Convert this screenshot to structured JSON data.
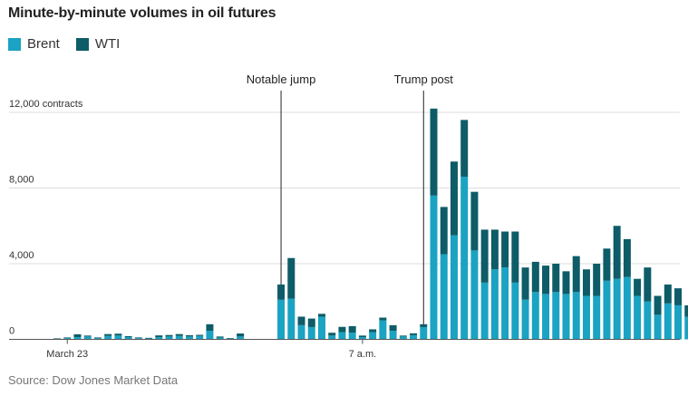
{
  "title": "Minute-by-minute volumes in oil futures",
  "source": "Source: Dow Jones Market Data",
  "colors": {
    "brent": "#1aa3c2",
    "wti": "#0d5c68",
    "grid": "#dcdcdc",
    "axis": "#555555"
  },
  "legend": [
    {
      "name": "Brent",
      "color": "#1aa3c2"
    },
    {
      "name": "WTI",
      "color": "#0d5c68"
    }
  ],
  "chart_data": {
    "type": "bar",
    "stacked": true,
    "title": "Minute-by-minute volumes in oil futures",
    "ylabel": "contracts",
    "ylim": [
      0,
      12000
    ],
    "yticks": [
      {
        "value": 0,
        "label": "0"
      },
      {
        "value": 4000,
        "label": "4,000"
      },
      {
        "value": 8000,
        "label": "8,000"
      },
      {
        "value": 12000,
        "label": "12,000 contracts"
      }
    ],
    "xtick_labels": [
      {
        "index": 1,
        "label": "March 23"
      },
      {
        "index": 30,
        "label": "7 a.m."
      }
    ],
    "annotations": [
      {
        "index": 22,
        "label": "Notable jump"
      },
      {
        "index": 36,
        "label": "Trump post"
      }
    ],
    "series": [
      {
        "name": "Brent",
        "values": [
          20,
          60,
          120,
          150,
          70,
          180,
          200,
          120,
          60,
          50,
          120,
          150,
          180,
          150,
          180,
          450,
          90,
          40,
          150,
          0,
          0,
          0,
          2100,
          2150,
          750,
          650,
          1200,
          200,
          380,
          350,
          120,
          380,
          1000,
          450,
          150,
          220,
          650,
          7600,
          4500,
          5500,
          8600,
          4700,
          3000,
          3700,
          3800,
          3000,
          2100,
          2500,
          2400,
          2500,
          2400,
          2500,
          2300,
          2300,
          3100,
          3200,
          3300,
          2300,
          2000,
          1300,
          1900,
          1800,
          1200
        ],
        "hover": ""
      },
      {
        "name": "WTI",
        "values": [
          30,
          40,
          150,
          50,
          30,
          100,
          100,
          50,
          40,
          30,
          90,
          80,
          100,
          70,
          60,
          350,
          60,
          30,
          160,
          0,
          0,
          0,
          800,
          2150,
          450,
          450,
          150,
          150,
          280,
          350,
          80,
          150,
          150,
          300,
          50,
          100,
          150,
          4600,
          2500,
          3900,
          3000,
          3100,
          2800,
          2100,
          1900,
          2700,
          1700,
          1600,
          1500,
          1500,
          1200,
          1900,
          1400,
          1700,
          1700,
          2800,
          2000,
          900,
          1800,
          1000,
          1000,
          900,
          600
        ]
      }
    ]
  }
}
